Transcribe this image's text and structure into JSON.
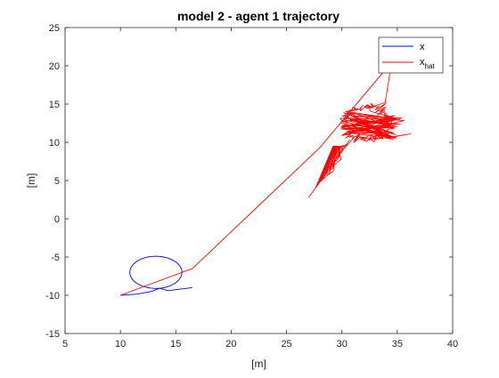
{
  "chart_data": {
    "type": "line",
    "title": "model 2 - agent 1 trajectory",
    "xlabel": "[m]",
    "ylabel": "[m]",
    "xlim": [
      5,
      40
    ],
    "ylim": [
      -15,
      25
    ],
    "xticks": [
      5,
      10,
      15,
      20,
      25,
      30,
      35,
      40
    ],
    "yticks": [
      -15,
      -10,
      -5,
      0,
      5,
      10,
      15,
      20,
      25
    ],
    "grid": false,
    "legend_position": "top-right",
    "series": [
      {
        "name": "x",
        "color": "#0000ff",
        "description": "true trajectory: approach curve then a circular loop",
        "start": [
          10.0,
          -10.0
        ],
        "end": [
          16.5,
          -9.0
        ],
        "loop_center": [
          13.2,
          -7.0
        ],
        "loop_radius": 2.1
      },
      {
        "name": "x",
        "subscript": "hat",
        "color": "#ff0000",
        "description": "estimated trajectory: straight jump from start to upper right, noisy loop, diverging tail",
        "start": [
          10.0,
          -10.0
        ],
        "jump_end": [
          34.5,
          20.5
        ],
        "loop_center": [
          32.3,
          12.6
        ],
        "loop_radius_x": 2.0,
        "loop_radius_y": 2.1,
        "tail_end": [
          27.0,
          2.8
        ],
        "extreme_right": [
          36.2,
          11.1
        ]
      }
    ]
  }
}
